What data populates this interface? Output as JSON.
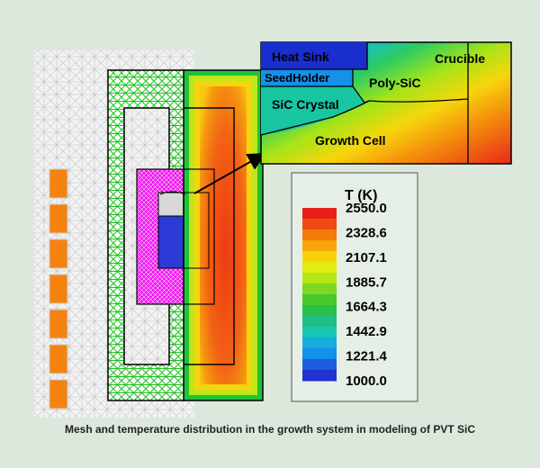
{
  "caption": "Mesh and temperature distribution in the growth system in modeling of PVT SiC",
  "inset_labels": {
    "heat_sink": "Heat Sink",
    "crucible": "Crucible",
    "seed_holder": "SeedHolder",
    "poly_sic": "Poly-SiC",
    "sic_crystal": "SiC Crystal",
    "growth_cell": "Growth Cell"
  },
  "legend": {
    "title": "T (K)",
    "ticks": [
      "2550.0",
      "2328.6",
      "2107.1",
      "1885.7",
      "1664.3",
      "1442.9",
      "1221.4",
      "1000.0"
    ],
    "colors": [
      "#e8201a",
      "#f04a14",
      "#f47a0c",
      "#f8a40a",
      "#f6d20c",
      "#e2ec10",
      "#b4e618",
      "#7ed822",
      "#48c82a",
      "#28c048",
      "#1ebf82",
      "#18c6b6",
      "#14aee0",
      "#1290ec",
      "#1a5ee0",
      "#2032d0"
    ]
  }
}
